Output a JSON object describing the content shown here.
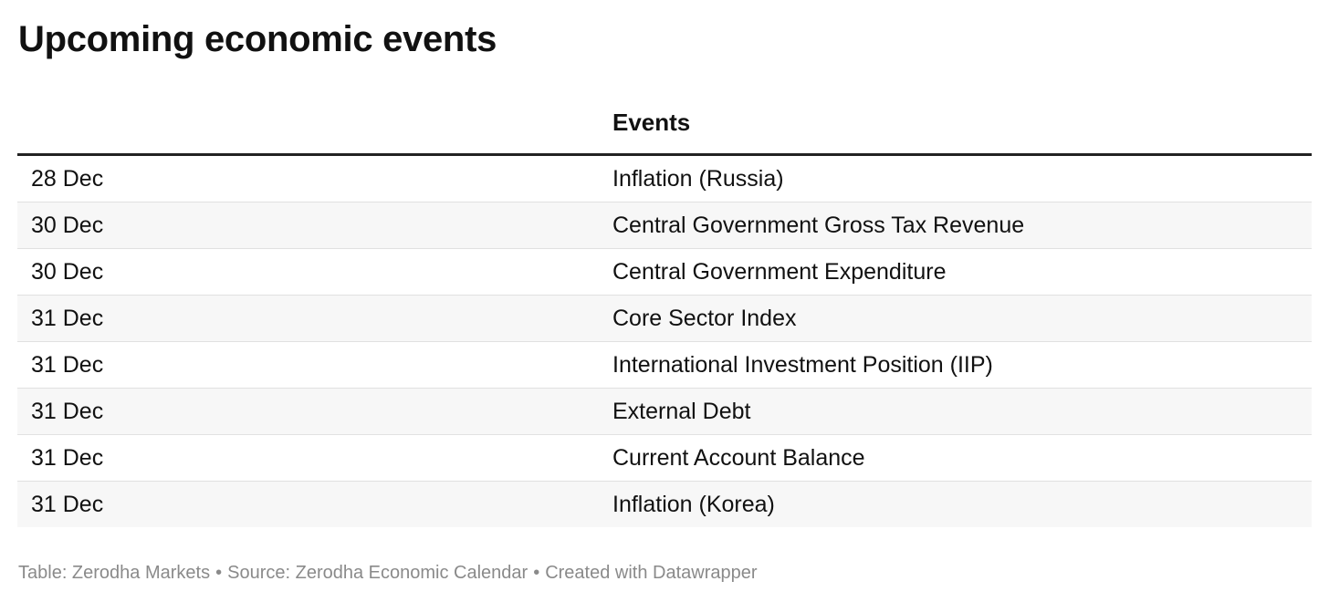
{
  "title": "Upcoming economic events",
  "chart_data": {
    "type": "table",
    "columns": [
      "",
      "Events"
    ],
    "rows": [
      {
        "date": "28 Dec",
        "event": "Inflation (Russia)"
      },
      {
        "date": "30 Dec",
        "event": "Central Government Gross Tax Revenue"
      },
      {
        "date": "30 Dec",
        "event": "Central Government Expenditure"
      },
      {
        "date": "31 Dec",
        "event": "Core Sector Index"
      },
      {
        "date": "31 Dec",
        "event": "International Investment Position (IIP)"
      },
      {
        "date": "31 Dec",
        "event": "External Debt"
      },
      {
        "date": "31 Dec",
        "event": "Current Account Balance"
      },
      {
        "date": "31 Dec",
        "event": "Inflation (Korea)"
      }
    ]
  },
  "footer": {
    "table_credit": "Table: Zerodha Markets",
    "separator": "•",
    "source": "Source: Zerodha Economic Calendar",
    "created_with": "Created with Datawrapper"
  },
  "colors": {
    "text": "#111111",
    "header_rule": "#222222",
    "row_divider": "#e1e1e1",
    "stripe": "#f7f7f7",
    "footer_text": "#8a8a8a"
  }
}
